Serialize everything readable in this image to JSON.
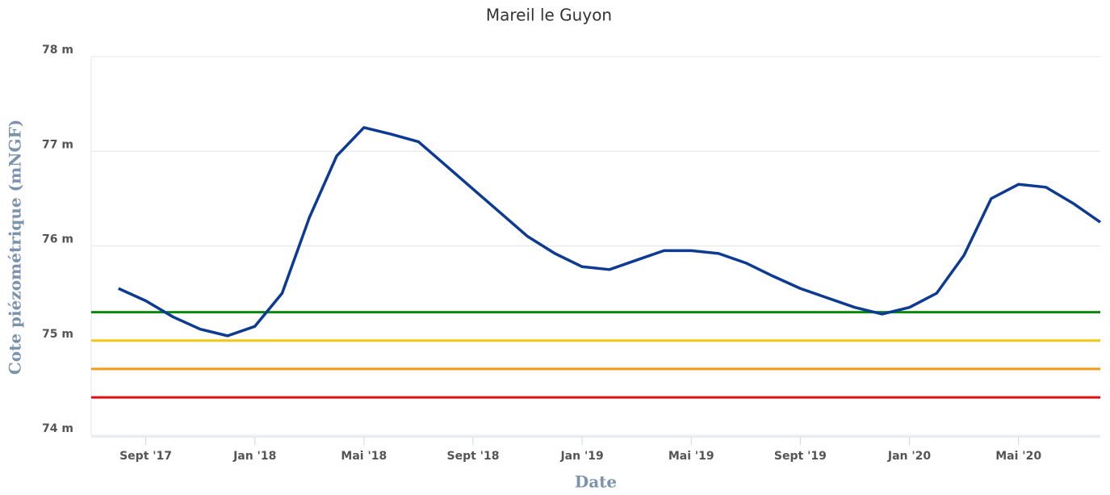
{
  "chart_data": {
    "type": "line",
    "title": "Mareil le Guyon",
    "x_label": "Date",
    "y_label": "Cote piézométrique (mNGF)",
    "x": [
      "2017-08",
      "2017-09",
      "2017-10",
      "2017-11",
      "2017-12",
      "2018-01",
      "2018-02",
      "2018-03",
      "2018-04",
      "2018-05",
      "2018-06",
      "2018-07",
      "2018-08",
      "2018-09",
      "2018-10",
      "2018-11",
      "2018-12",
      "2019-01",
      "2019-02",
      "2019-03",
      "2019-04",
      "2019-05",
      "2019-06",
      "2019-07",
      "2019-08",
      "2019-09",
      "2019-10",
      "2019-11",
      "2019-12",
      "2020-01",
      "2020-02",
      "2020-03",
      "2020-04",
      "2020-05",
      "2020-06",
      "2020-07",
      "2020-08"
    ],
    "series": [
      {
        "color": "#0d3a93",
        "values": [
          75.55,
          75.42,
          75.25,
          75.12,
          75.05,
          75.15,
          75.5,
          76.3,
          76.95,
          77.25,
          77.18,
          77.1,
          76.85,
          76.6,
          76.35,
          76.1,
          75.92,
          75.78,
          75.75,
          75.85,
          75.95,
          75.95,
          75.92,
          75.82,
          75.68,
          75.55,
          75.45,
          75.35,
          75.28,
          75.35,
          75.5,
          75.9,
          76.5,
          76.65,
          76.62,
          76.45,
          76.25
        ]
      }
    ],
    "thresholds": [
      {
        "value": 75.3,
        "color": "#0a8a0a"
      },
      {
        "value": 75.0,
        "color": "#f5c518"
      },
      {
        "value": 74.7,
        "color": "#f39c12"
      },
      {
        "value": 74.4,
        "color": "#e01010"
      }
    ],
    "xlim": [
      "2017-07",
      "2020-08"
    ],
    "xticks": [
      {
        "value": "2017-09",
        "label": "Sept '17"
      },
      {
        "value": "2018-01",
        "label": "Jan '18"
      },
      {
        "value": "2018-05",
        "label": "Mai '18"
      },
      {
        "value": "2018-09",
        "label": "Sept '18"
      },
      {
        "value": "2019-01",
        "label": "Jan '19"
      },
      {
        "value": "2019-05",
        "label": "Mai '19"
      },
      {
        "value": "2019-09",
        "label": "Sept '19"
      },
      {
        "value": "2020-01",
        "label": "Jan '20"
      },
      {
        "value": "2020-05",
        "label": "Mai '20"
      }
    ],
    "ylim": [
      74,
      78
    ],
    "yticks": [
      {
        "value": 74,
        "label": "74 m"
      },
      {
        "value": 75,
        "label": "75 m"
      },
      {
        "value": 76,
        "label": "76 m"
      },
      {
        "value": 77,
        "label": "77 m"
      },
      {
        "value": 78,
        "label": "78 m"
      }
    ],
    "grid": true
  }
}
